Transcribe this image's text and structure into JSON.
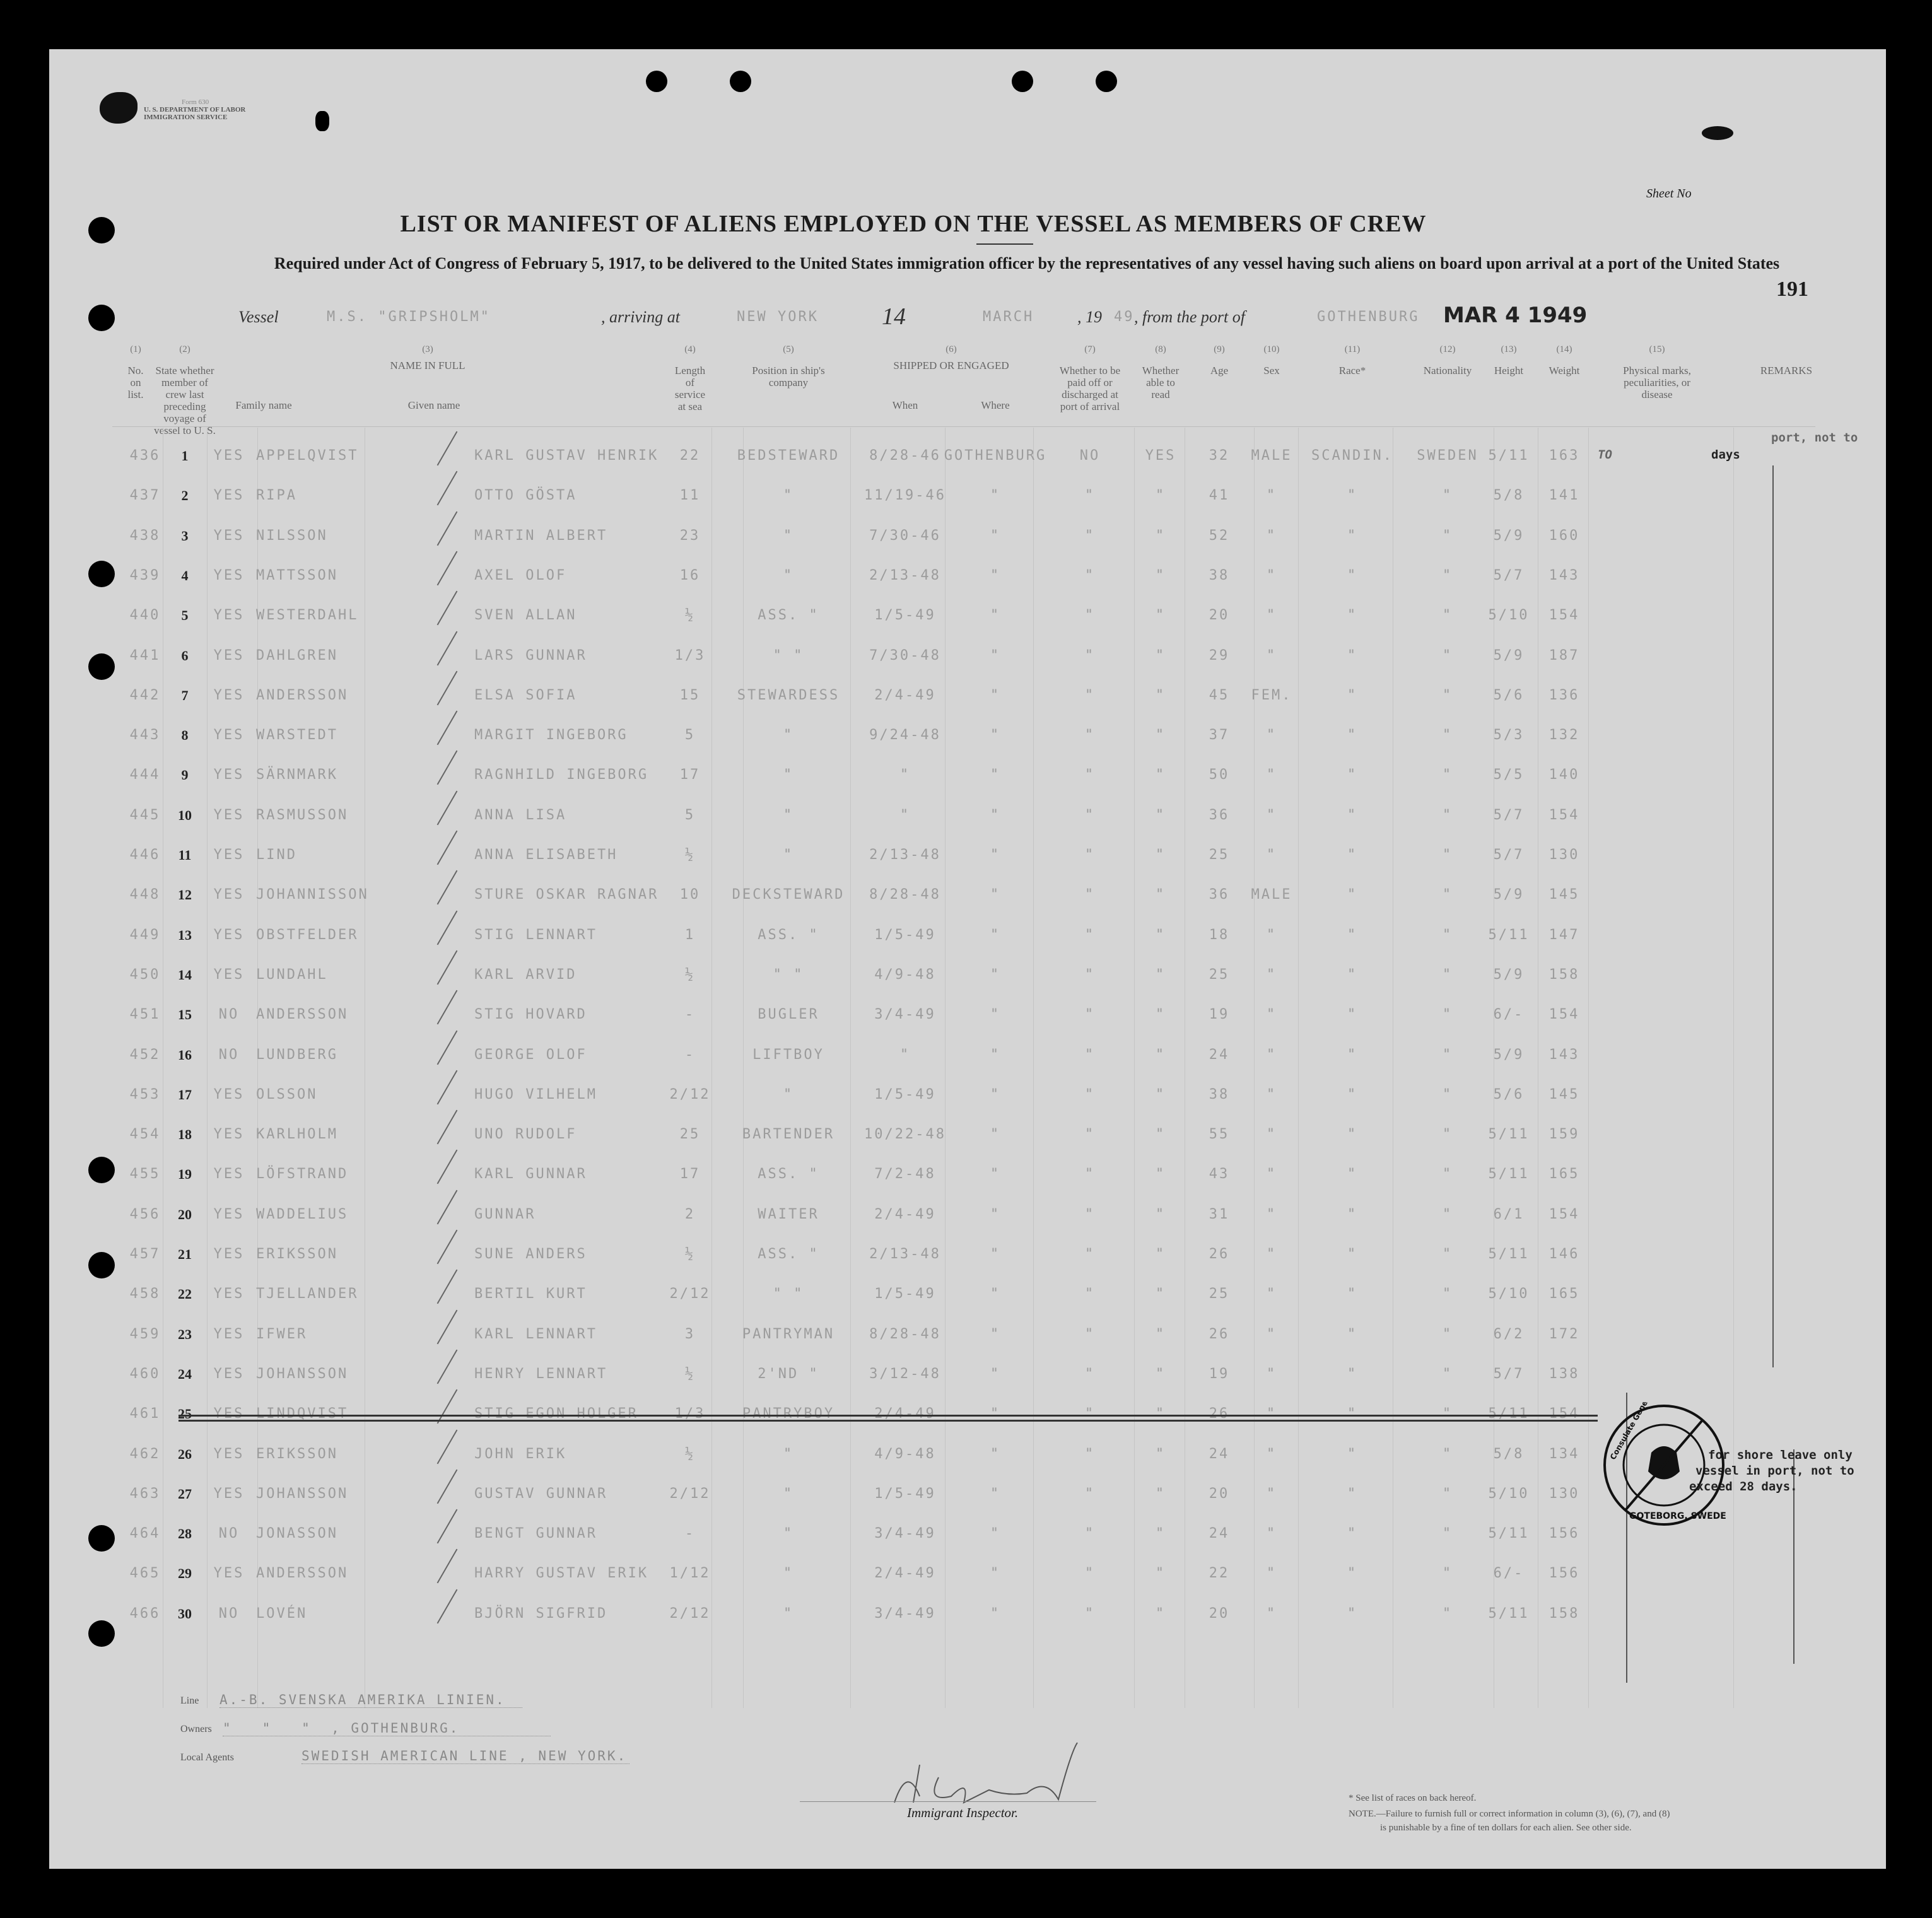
{
  "form_header": {
    "form_no": "Form 630",
    "department": "U. S. DEPARTMENT OF LABOR",
    "service": "IMMIGRATION SERVICE",
    "sheet_label": "Sheet No",
    "title": "LIST OR MANIFEST OF ALIENS EMPLOYED ON THE VESSEL AS MEMBERS OF CREW",
    "subtitle": "Required under Act of Congress of February 5, 1917, to be delivered to the United States immigration officer by the representatives of any vessel having such aliens on board upon arrival at a port of the United States",
    "page_number": "191"
  },
  "voyage": {
    "vessel_label": "Vessel",
    "vessel": "M.S. \"GRIPSHOLM\"",
    "arriving_label": ", arriving at",
    "arriving_port": "NEW YORK",
    "day": "14",
    "month": "MARCH",
    "year_label": ", 19",
    "year": "49",
    "from_label": ", from the port of",
    "from_port": "GOTHENBURG",
    "date_stamp": "MAR 4 1949"
  },
  "columns": [
    {
      "num": "(1)",
      "label": "No. on list."
    },
    {
      "num": "(2)",
      "label": "State whether member of crew last preceding voyage of vessel to U. S."
    },
    {
      "num": "(3)",
      "label": "NAME IN FULL",
      "sub": [
        "Family name",
        "Given name"
      ]
    },
    {
      "num": "(4)",
      "label": "Length of service at sea"
    },
    {
      "num": "(5)",
      "label": "Position in ship's company"
    },
    {
      "num": "(6)",
      "label": "SHIPPED OR ENGAGED",
      "sub": [
        "When",
        "Where"
      ]
    },
    {
      "num": "(7)",
      "label": "Whether to be paid off or discharged at port of arrival"
    },
    {
      "num": "(8)",
      "label": "Whether able to read"
    },
    {
      "num": "(9)",
      "label": "Age"
    },
    {
      "num": "(10)",
      "label": "Sex"
    },
    {
      "num": "(11)",
      "label": "Race*"
    },
    {
      "num": "(12)",
      "label": "Nationality"
    },
    {
      "num": "(13)",
      "label": "Height"
    },
    {
      "num": "(14)",
      "label": "Weight"
    },
    {
      "num": "(15)",
      "label": "Physical marks, peculiarities, or disease"
    },
    {
      "num": "",
      "label": "REMARKS"
    }
  ],
  "rows": [
    {
      "list": "436",
      "no": "1",
      "prev": "YES",
      "family": "APPELQVIST",
      "given": "KARL GUSTAV HENRIK",
      "length": "22",
      "position": "BEDSTEWARD",
      "when": "8/28-46",
      "where": "GOTHENBURG",
      "paid": "NO",
      "read": "YES",
      "age": "32",
      "sex": "MALE",
      "race": "SCANDIN.",
      "nat": "SWEDEN",
      "height": "5/11",
      "weight": "163"
    },
    {
      "list": "437",
      "no": "2",
      "prev": "YES",
      "family": "RIPA",
      "given": "OTTO GÖSTA",
      "length": "11",
      "position": "\"",
      "when": "11/19-46",
      "where": "\"",
      "paid": "\"",
      "read": "\"",
      "age": "41",
      "sex": "\"",
      "race": "\"",
      "nat": "\"",
      "height": "5/8",
      "weight": "141"
    },
    {
      "list": "438",
      "no": "3",
      "prev": "YES",
      "family": "NILSSON",
      "given": "MARTIN ALBERT",
      "length": "23",
      "position": "\"",
      "when": "7/30-46",
      "where": "\"",
      "paid": "\"",
      "read": "\"",
      "age": "52",
      "sex": "\"",
      "race": "\"",
      "nat": "\"",
      "height": "5/9",
      "weight": "160"
    },
    {
      "list": "439",
      "no": "4",
      "prev": "YES",
      "family": "MATTSSON",
      "given": "AXEL OLOF",
      "length": "16",
      "position": "\"",
      "when": "2/13-48",
      "where": "\"",
      "paid": "\"",
      "read": "\"",
      "age": "38",
      "sex": "\"",
      "race": "\"",
      "nat": "\"",
      "height": "5/7",
      "weight": "143"
    },
    {
      "list": "440",
      "no": "5",
      "prev": "YES",
      "family": "WESTERDAHL",
      "given": "SVEN ALLAN",
      "length": "½",
      "position": "ASS. \"",
      "when": "1/5-49",
      "where": "\"",
      "paid": "\"",
      "read": "\"",
      "age": "20",
      "sex": "\"",
      "race": "\"",
      "nat": "\"",
      "height": "5/10",
      "weight": "154"
    },
    {
      "list": "441",
      "no": "6",
      "prev": "YES",
      "family": "DAHLGREN",
      "given": "LARS GUNNAR",
      "length": "1/3",
      "position": "\"   \"",
      "when": "7/30-48",
      "where": "\"",
      "paid": "\"",
      "read": "\"",
      "age": "29",
      "sex": "\"",
      "race": "\"",
      "nat": "\"",
      "height": "5/9",
      "weight": "187"
    },
    {
      "list": "442",
      "no": "7",
      "prev": "YES",
      "family": "ANDERSSON",
      "given": "ELSA SOFIA",
      "length": "15",
      "position": "STEWARDESS",
      "when": "2/4-49",
      "where": "\"",
      "paid": "\"",
      "read": "\"",
      "age": "45",
      "sex": "FEM.",
      "race": "\"",
      "nat": "\"",
      "height": "5/6",
      "weight": "136"
    },
    {
      "list": "443",
      "no": "8",
      "prev": "YES",
      "family": "WARSTEDT",
      "given": "MARGIT INGEBORG",
      "length": "5",
      "position": "\"",
      "when": "9/24-48",
      "where": "\"",
      "paid": "\"",
      "read": "\"",
      "age": "37",
      "sex": "\"",
      "race": "\"",
      "nat": "\"",
      "height": "5/3",
      "weight": "132"
    },
    {
      "list": "444",
      "no": "9",
      "prev": "YES",
      "family": "SÄRNMARK",
      "given": "RAGNHILD INGEBORG",
      "length": "17",
      "position": "\"",
      "when": "\"",
      "where": "\"",
      "paid": "\"",
      "read": "\"",
      "age": "50",
      "sex": "\"",
      "race": "\"",
      "nat": "\"",
      "height": "5/5",
      "weight": "140"
    },
    {
      "list": "445",
      "no": "10",
      "prev": "YES",
      "family": "RASMUSSON",
      "given": "ANNA LISA",
      "length": "5",
      "position": "\"",
      "when": "\"",
      "where": "\"",
      "paid": "\"",
      "read": "\"",
      "age": "36",
      "sex": "\"",
      "race": "\"",
      "nat": "\"",
      "height": "5/7",
      "weight": "154"
    },
    {
      "list": "446",
      "no": "11",
      "prev": "YES",
      "family": "LIND",
      "given": "ANNA ELISABETH",
      "length": "½",
      "position": "\"",
      "when": "2/13-48",
      "where": "\"",
      "paid": "\"",
      "read": "\"",
      "age": "25",
      "sex": "\"",
      "race": "\"",
      "nat": "\"",
      "height": "5/7",
      "weight": "130"
    },
    {
      "list": "448",
      "no": "12",
      "prev": "YES",
      "family": "JOHANNISSON",
      "given": "STURE OSKAR RAGNAR",
      "length": "10",
      "position": "DECKSTEWARD",
      "when": "8/28-48",
      "where": "\"",
      "paid": "\"",
      "read": "\"",
      "age": "36",
      "sex": "MALE",
      "race": "\"",
      "nat": "\"",
      "height": "5/9",
      "weight": "145"
    },
    {
      "list": "449",
      "no": "13",
      "prev": "YES",
      "family": "OBSTFELDER",
      "given": "STIG LENNART",
      "length": "1",
      "position": "ASS. \"",
      "when": "1/5-49",
      "where": "\"",
      "paid": "\"",
      "read": "\"",
      "age": "18",
      "sex": "\"",
      "race": "\"",
      "nat": "\"",
      "height": "5/11",
      "weight": "147"
    },
    {
      "list": "450",
      "no": "14",
      "prev": "YES",
      "family": "LUNDAHL",
      "given": "KARL ARVID",
      "length": "½",
      "position": "\"   \"",
      "when": "4/9-48",
      "where": "\"",
      "paid": "\"",
      "read": "\"",
      "age": "25",
      "sex": "\"",
      "race": "\"",
      "nat": "\"",
      "height": "5/9",
      "weight": "158"
    },
    {
      "list": "451",
      "no": "15",
      "prev": "NO",
      "family": "ANDERSSON",
      "given": "STIG HOVARD",
      "length": "-",
      "position": "BUGLER",
      "when": "3/4-49",
      "where": "\"",
      "paid": "\"",
      "read": "\"",
      "age": "19",
      "sex": "\"",
      "race": "\"",
      "nat": "\"",
      "height": "6/-",
      "weight": "154"
    },
    {
      "list": "452",
      "no": "16",
      "prev": "NO",
      "family": "LUNDBERG",
      "given": "GEORGE OLOF",
      "length": "-",
      "position": "LIFTBOY",
      "when": "\"",
      "where": "\"",
      "paid": "\"",
      "read": "\"",
      "age": "24",
      "sex": "\"",
      "race": "\"",
      "nat": "\"",
      "height": "5/9",
      "weight": "143"
    },
    {
      "list": "453",
      "no": "17",
      "prev": "YES",
      "family": "OLSSON",
      "given": "HUGO VILHELM",
      "length": "2/12",
      "position": "\"",
      "when": "1/5-49",
      "where": "\"",
      "paid": "\"",
      "read": "\"",
      "age": "38",
      "sex": "\"",
      "race": "\"",
      "nat": "\"",
      "height": "5/6",
      "weight": "145"
    },
    {
      "list": "454",
      "no": "18",
      "prev": "YES",
      "family": "KARLHOLM",
      "given": "UNO RUDOLF",
      "length": "25",
      "position": "BARTENDER",
      "when": "10/22-48",
      "where": "\"",
      "paid": "\"",
      "read": "\"",
      "age": "55",
      "sex": "\"",
      "race": "\"",
      "nat": "\"",
      "height": "5/11",
      "weight": "159"
    },
    {
      "list": "455",
      "no": "19",
      "prev": "YES",
      "family": "LÖFSTRAND",
      "given": "KARL GUNNAR",
      "length": "17",
      "position": "ASS. \"",
      "when": "7/2-48",
      "where": "\"",
      "paid": "\"",
      "read": "\"",
      "age": "43",
      "sex": "\"",
      "race": "\"",
      "nat": "\"",
      "height": "5/11",
      "weight": "165"
    },
    {
      "list": "456",
      "no": "20",
      "prev": "YES",
      "family": "WADDELIUS",
      "given": "GUNNAR",
      "length": "2",
      "position": "WAITER",
      "when": "2/4-49",
      "where": "\"",
      "paid": "\"",
      "read": "\"",
      "age": "31",
      "sex": "\"",
      "race": "\"",
      "nat": "\"",
      "height": "6/1",
      "weight": "154"
    },
    {
      "list": "457",
      "no": "21",
      "prev": "YES",
      "family": "ERIKSSON",
      "given": "SUNE ANDERS",
      "length": "½",
      "position": "ASS. \"",
      "when": "2/13-48",
      "where": "\"",
      "paid": "\"",
      "read": "\"",
      "age": "26",
      "sex": "\"",
      "race": "\"",
      "nat": "\"",
      "height": "5/11",
      "weight": "146"
    },
    {
      "list": "458",
      "no": "22",
      "prev": "YES",
      "family": "TJELLANDER",
      "given": "BERTIL KURT",
      "length": "2/12",
      "position": "\"   \"",
      "when": "1/5-49",
      "where": "\"",
      "paid": "\"",
      "read": "\"",
      "age": "25",
      "sex": "\"",
      "race": "\"",
      "nat": "\"",
      "height": "5/10",
      "weight": "165"
    },
    {
      "list": "459",
      "no": "23",
      "prev": "YES",
      "family": "IFWER",
      "given": "KARL LENNART",
      "length": "3",
      "position": "PANTRYMAN",
      "when": "8/28-48",
      "where": "\"",
      "paid": "\"",
      "read": "\"",
      "age": "26",
      "sex": "\"",
      "race": "\"",
      "nat": "\"",
      "height": "6/2",
      "weight": "172"
    },
    {
      "list": "460",
      "no": "24",
      "prev": "YES",
      "family": "JOHANSSON",
      "given": "HENRY LENNART",
      "length": "½",
      "position": "2'ND \"",
      "when": "3/12-48",
      "where": "\"",
      "paid": "\"",
      "read": "\"",
      "age": "19",
      "sex": "\"",
      "race": "\"",
      "nat": "\"",
      "height": "5/7",
      "weight": "138"
    },
    {
      "list": "461",
      "no": "25",
      "prev": "YES",
      "family": "LINDQVIST",
      "given": "STIG EGON HOLGER",
      "length": "1/3",
      "position": "PANTRYBOY",
      "when": "2/4-49",
      "where": "\"",
      "paid": "\"",
      "read": "\"",
      "age": "26",
      "sex": "\"",
      "race": "\"",
      "nat": "\"",
      "height": "5/11",
      "weight": "154",
      "struck": true
    },
    {
      "list": "462",
      "no": "26",
      "prev": "YES",
      "family": "ERIKSSON",
      "given": "JOHN ERIK",
      "length": "½",
      "position": "\"",
      "when": "4/9-48",
      "where": "\"",
      "paid": "\"",
      "read": "\"",
      "age": "24",
      "sex": "\"",
      "race": "\"",
      "nat": "\"",
      "height": "5/8",
      "weight": "134"
    },
    {
      "list": "463",
      "no": "27",
      "prev": "YES",
      "family": "JOHANSSON",
      "given": "GUSTAV GUNNAR",
      "length": "2/12",
      "position": "\"",
      "when": "1/5-49",
      "where": "\"",
      "paid": "\"",
      "read": "\"",
      "age": "20",
      "sex": "\"",
      "race": "\"",
      "nat": "\"",
      "height": "5/10",
      "weight": "130"
    },
    {
      "list": "464",
      "no": "28",
      "prev": "NO",
      "family": "JONASSON",
      "given": "BENGT GUNNAR",
      "length": "-",
      "position": "\"",
      "when": "3/4-49",
      "where": "\"",
      "paid": "\"",
      "read": "\"",
      "age": "24",
      "sex": "\"",
      "race": "\"",
      "nat": "\"",
      "height": "5/11",
      "weight": "156"
    },
    {
      "list": "465",
      "no": "29",
      "prev": "YES",
      "family": "ANDERSSON",
      "given": "HARRY GUSTAV ERIK",
      "length": "1/12",
      "position": "\"",
      "when": "2/4-49",
      "where": "\"",
      "paid": "\"",
      "read": "\"",
      "age": "22",
      "sex": "\"",
      "race": "\"",
      "nat": "\"",
      "height": "6/-",
      "weight": "156"
    },
    {
      "list": "466",
      "no": "30",
      "prev": "NO",
      "family": "LOVÉN",
      "given": "BJÖRN SIGFRID",
      "length": "2/12",
      "position": "\"",
      "when": "3/4-49",
      "where": "\"",
      "paid": "\"",
      "read": "\"",
      "age": "20",
      "sex": "\"",
      "race": "\"",
      "nat": "\"",
      "height": "5/11",
      "weight": "158"
    }
  ],
  "remarks": {
    "top_fragment": "port, not to",
    "row1_fragment": "TO",
    "row1_days": "days",
    "line1": "for shore leave only",
    "line2": "vessel in port, not to",
    "line3": "exceed 28 days."
  },
  "stamp": {
    "text_top": "Consulate General of the United States of America",
    "text_bottom": "GOTEBORG, SWEDEN"
  },
  "footer": {
    "line_label": "Line",
    "line_value": "A.-B. SVENSKA AMERIKA LINIEN.",
    "owners_label": "Owners",
    "owners_value": "\"   \"   \"  , GOTHENBURG.",
    "agents_label": "Local Agents",
    "agents_value": "SWEDISH AMERICAN LINE , NEW YORK.",
    "inspector_label": "Immigrant Inspector.",
    "races_note": "* See list of races on back hereof.",
    "note": "NOTE.—Failure to furnish full or correct information in column (3), (6), (7), and (8)",
    "note2": "is punishable by a fine of ten dollars for each alien. See other side."
  }
}
